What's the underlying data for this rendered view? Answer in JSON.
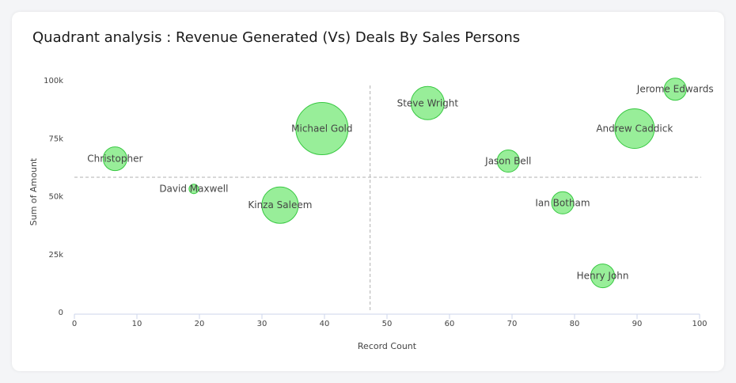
{
  "chart_title": "Quadrant analysis : Revenue Generated (Vs) Deals By Sales Persons",
  "colors": {
    "bubble_fill": "#98ee99",
    "bubble_stroke": "#37c841",
    "quadrant_line": "#b0b0b0",
    "axis_line": "#ccd6eb"
  },
  "chart_data": {
    "type": "scatter",
    "subtype": "bubble",
    "title": "Quadrant analysis : Revenue Generated (Vs) Deals By Sales Persons",
    "xlabel": "Record Count",
    "ylabel": "Sum of Amount",
    "xlim": [
      0,
      100
    ],
    "ylim": [
      0,
      100000
    ],
    "x_ticks": [
      "0",
      "10",
      "20",
      "30",
      "40",
      "50",
      "60",
      "70",
      "80",
      "90",
      "100"
    ],
    "y_ticks": [
      "0",
      "25k",
      "50k",
      "75k",
      "100k"
    ],
    "x_tick_values": [
      0,
      10,
      20,
      30,
      40,
      50,
      60,
      70,
      80,
      90,
      100
    ],
    "y_tick_values": [
      0,
      25000,
      50000,
      75000,
      100000
    ],
    "quadrant_x": 47.3,
    "quadrant_y": 58000,
    "grid": false,
    "points": [
      {
        "label": "Jerome Edwards",
        "x": 96.1,
        "y": 96000,
        "size": 14
      },
      {
        "label": "Steve Wright",
        "x": 56.5,
        "y": 90000,
        "size": 21
      },
      {
        "label": "Michael Gold",
        "x": 39.6,
        "y": 79000,
        "size": 33
      },
      {
        "label": "Andrew Caddick",
        "x": 89.6,
        "y": 79000,
        "size": 25
      },
      {
        "label": "Christopher",
        "x": 6.5,
        "y": 66000,
        "size": 15
      },
      {
        "label": "Jason Bell",
        "x": 69.4,
        "y": 65000,
        "size": 14
      },
      {
        "label": "David Maxwell",
        "x": 19.1,
        "y": 53000,
        "size": 6
      },
      {
        "label": "Kinza Saleem",
        "x": 32.9,
        "y": 46000,
        "size": 23
      },
      {
        "label": "Ian Botham",
        "x": 78.1,
        "y": 47000,
        "size": 14
      },
      {
        "label": "Henry John",
        "x": 84.5,
        "y": 15500,
        "size": 15
      }
    ]
  }
}
